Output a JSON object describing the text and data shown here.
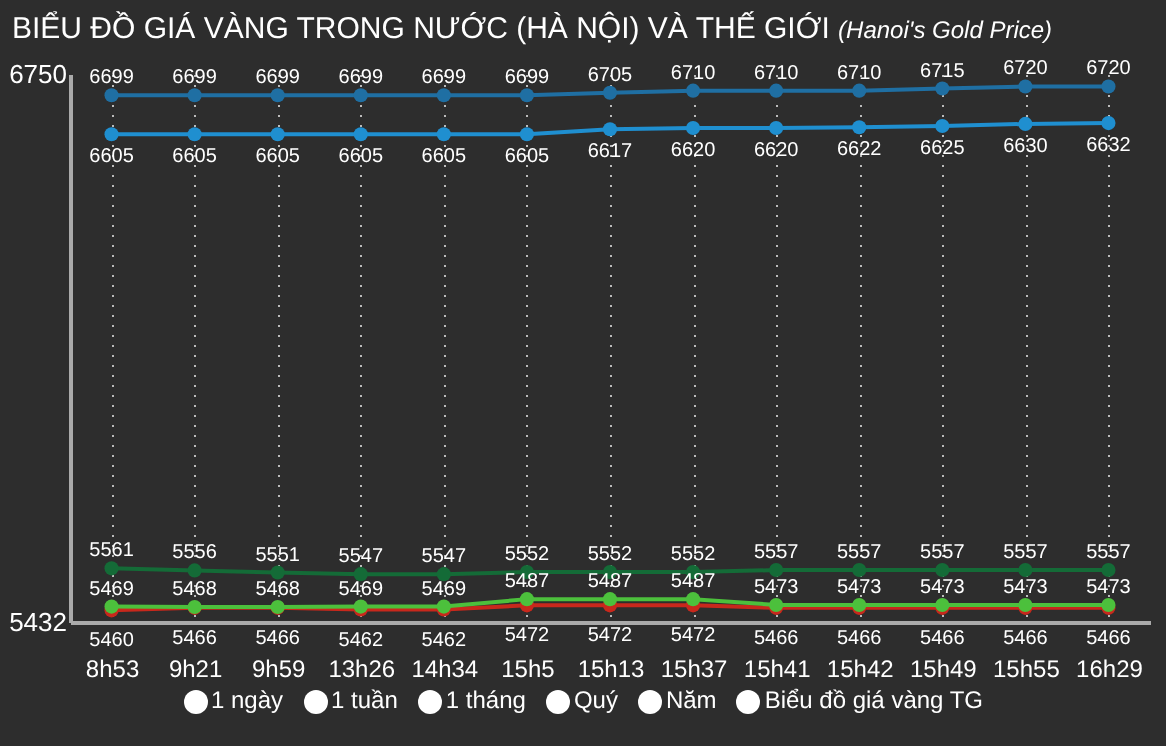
{
  "chart_data": {
    "type": "line",
    "title": "BIỂU ĐỒ GIÁ VÀNG TRONG NƯỚC (HÀ NỘI) VÀ THẾ GIỚI",
    "subtitle": "(Hanoi's Gold Price)",
    "categories": [
      "8h53",
      "9h21",
      "9h59",
      "13h26",
      "14h34",
      "15h5",
      "15h13",
      "15h37",
      "15h41",
      "15h42",
      "15h49",
      "15h55",
      "16h29"
    ],
    "series": [
      {
        "color": "#1f6fa3",
        "values": [
          6699,
          6699,
          6699,
          6699,
          6699,
          6699,
          6705,
          6710,
          6710,
          6710,
          6715,
          6720,
          6720
        ]
      },
      {
        "color": "#1f8fd0",
        "values": [
          6605,
          6605,
          6605,
          6605,
          6605,
          6605,
          6617,
          6620,
          6620,
          6622,
          6625,
          6630,
          6632
        ]
      },
      {
        "color": "#146b37",
        "values": [
          5561,
          5556,
          5551,
          5547,
          5547,
          5552,
          5552,
          5552,
          5557,
          5557,
          5557,
          5557,
          5557
        ]
      },
      {
        "color": "#c8281c",
        "values": [
          5460,
          5466,
          5466,
          5462,
          5462,
          5472,
          5472,
          5472,
          5466,
          5466,
          5466,
          5466,
          5466
        ]
      },
      {
        "color": "#4cc03c",
        "values": [
          5469,
          5468,
          5468,
          5469,
          5469,
          5487,
          5487,
          5487,
          5473,
          5473,
          5473,
          5473,
          5473
        ]
      }
    ],
    "ylim": [
      5432,
      6750
    ],
    "yticks": [
      5432,
      6750
    ],
    "grid": "x",
    "marker": "circle",
    "data_labels": true,
    "annotations": [
      "1 ngày",
      "1 tuần",
      "1 tháng",
      "Quý",
      "Năm",
      "Biểu đồ giá vàng TG"
    ]
  }
}
